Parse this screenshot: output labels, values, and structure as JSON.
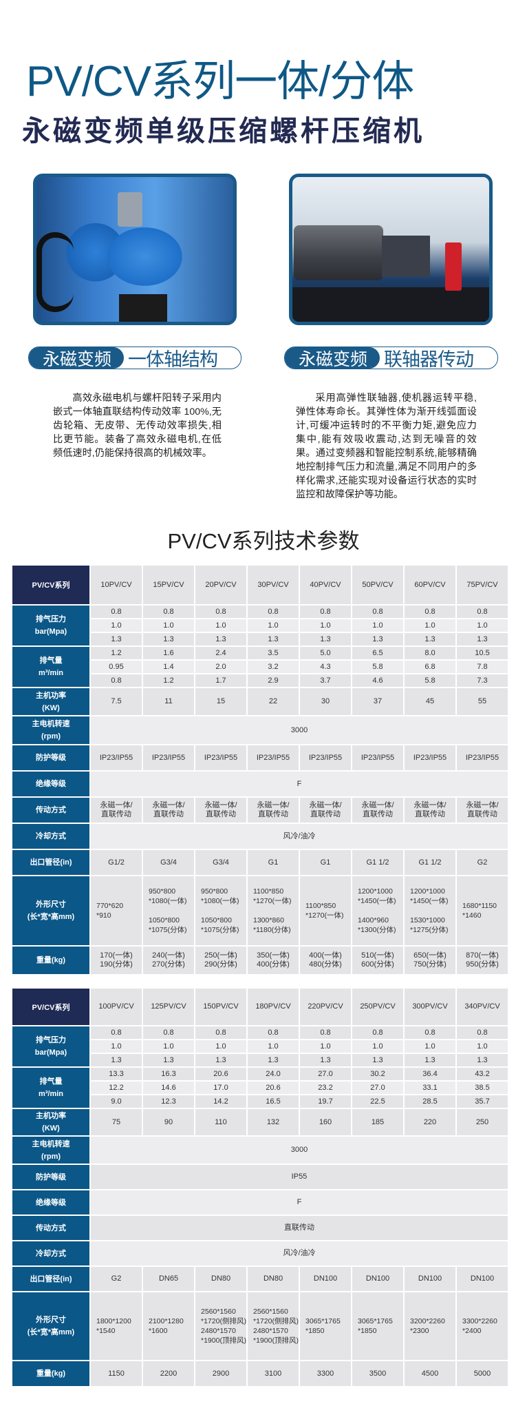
{
  "header": {
    "title_main": "PV/CV系列",
    "title_thin": "一体/分体",
    "subtitle": "永磁变频单级压缩螺杆压缩机"
  },
  "features": [
    {
      "image": "integrated-shaft-compressor-photo",
      "badge_left": "永磁变频",
      "badge_right": "一体轴结构",
      "description": "高效永磁电机与螺杆阳转子采用内嵌式一体轴直联结构传动效率 100%,无齿轮箱、无皮带、无传动效率损失,相比更节能。装备了高效永磁电机,在低频低速时,仍能保持很高的机械效率。"
    },
    {
      "image": "coupling-drive-compressor-photo",
      "badge_left": "永磁变频",
      "badge_right": "联轴器传动",
      "description": "采用高弹性联轴器,使机器运转平稳,弹性体寿命长。其弹性体为渐开线弧面设计,可缓冲运转时的不平衡力矩,避免应力集中,能有效吸收震动,达到无噪音的效果。通过变频器和智能控制系统,能够精确地控制排气压力和流量,满足不同用户的多样化需求,还能实现对设备运行状态的实时监控和故障保护等功能。"
    }
  ],
  "section_title": "PV/CV系列技术参数",
  "colors": {
    "title": "#0f5886",
    "row_header": "#0b5787",
    "corner": "#1f2a55",
    "cell": "#e4e4e7"
  },
  "tables": [
    {
      "corner": "PV/CV系列",
      "models": [
        "10PV/CV",
        "15PV/CV",
        "20PV/CV",
        "30PV/CV",
        "40PV/CV",
        "50PV/CV",
        "60PV/CV",
        "75PV/CV"
      ],
      "rows": [
        {
          "label": "排气压力\nbar(Mpa)",
          "subrows": [
            [
              "0.8",
              "0.8",
              "0.8",
              "0.8",
              "0.8",
              "0.8",
              "0.8",
              "0.8"
            ],
            [
              "1.0",
              "1.0",
              "1.0",
              "1.0",
              "1.0",
              "1.0",
              "1.0",
              "1.0"
            ],
            [
              "1.3",
              "1.3",
              "1.3",
              "1.3",
              "1.3",
              "1.3",
              "1.3",
              "1.3"
            ]
          ]
        },
        {
          "label": "排气量\nm³/min",
          "subrows": [
            [
              "1.2",
              "1.6",
              "2.4",
              "3.5",
              "5.0",
              "6.5",
              "8.0",
              "10.5"
            ],
            [
              "0.95",
              "1.4",
              "2.0",
              "3.2",
              "4.3",
              "5.8",
              "6.8",
              "7.8"
            ],
            [
              "0.8",
              "1.2",
              "1.7",
              "2.9",
              "3.7",
              "4.6",
              "5.8",
              "7.3"
            ]
          ]
        },
        {
          "label": "主机功率\n(KW)",
          "values": [
            "7.5",
            "11",
            "15",
            "22",
            "30",
            "37",
            "45",
            "55"
          ]
        },
        {
          "label": "主电机转速\n(rpm)",
          "merged": "3000"
        },
        {
          "label": "防护等级",
          "values": [
            "IP23/IP55",
            "IP23/IP55",
            "IP23/IP55",
            "IP23/IP55",
            "IP23/IP55",
            "IP23/IP55",
            "IP23/IP55",
            "IP23/IP55"
          ]
        },
        {
          "label": "绝缘等级",
          "merged": "F"
        },
        {
          "label": "传动方式",
          "values": [
            "永磁一体/\n直联传动",
            "永磁一体/\n直联传动",
            "永磁一体/\n直联传动",
            "永磁一体/\n直联传动",
            "永磁一体/\n直联传动",
            "永磁一体/\n直联传动",
            "永磁一体/\n直联传动",
            "永磁一体/\n直联传动"
          ]
        },
        {
          "label": "冷却方式",
          "merged": "风冷/油冷"
        },
        {
          "label": "出口管径(in)",
          "values": [
            "G1/2",
            "G3/4",
            "G3/4",
            "G1",
            "G1",
            "G1  1/2",
            "G1  1/2",
            "G2"
          ]
        },
        {
          "label": "外形尺寸\n(长*宽*高mm)",
          "dims": true,
          "values": [
            "770*620\n*910",
            "950*800\n*1080(一体)\n\n1050*800\n*1075(分体)",
            "950*800\n*1080(一体)\n\n1050*800\n*1075(分体)",
            "1100*850\n*1270(一体)\n\n1300*860\n*1180(分体)",
            "1100*850\n*1270(一体)",
            "1200*1000\n*1450(一体)\n\n1400*960\n*1300(分体)",
            "1200*1000\n*1450(一体)\n\n1530*1000\n*1275(分体)",
            "1680*1150\n*1460"
          ]
        },
        {
          "label": "重量(kg)",
          "values": [
            "170(一体)\n190(分体)",
            "240(一体)\n270(分体)",
            "250(一体)\n290(分体)",
            "350(一体)\n400(分体)",
            "400(一体)\n480(分体)",
            "510(一体)\n600(分体)",
            "650(一体)\n750(分体)",
            "870(一体)\n950(分体)"
          ]
        }
      ]
    },
    {
      "corner": "PV/CV系列",
      "models": [
        "100PV/CV",
        "125PV/CV",
        "150PV/CV",
        "180PV/CV",
        "220PV/CV",
        "250PV/CV",
        "300PV/CV",
        "340PV/CV"
      ],
      "rows": [
        {
          "label": "排气压力\nbar(Mpa)",
          "subrows": [
            [
              "0.8",
              "0.8",
              "0.8",
              "0.8",
              "0.8",
              "0.8",
              "0.8",
              "0.8"
            ],
            [
              "1.0",
              "1.0",
              "1.0",
              "1.0",
              "1.0",
              "1.0",
              "1.0",
              "1.0"
            ],
            [
              "1.3",
              "1.3",
              "1.3",
              "1.3",
              "1.3",
              "1.3",
              "1.3",
              "1.3"
            ]
          ]
        },
        {
          "label": "排气量\nm³/min",
          "subrows": [
            [
              "13.3",
              "16.3",
              "20.6",
              "24.0",
              "27.0",
              "30.2",
              "36.4",
              "43.2"
            ],
            [
              "12.2",
              "14.6",
              "17.0",
              "20.6",
              "23.2",
              "27.0",
              "33.1",
              "38.5"
            ],
            [
              "9.0",
              "12.3",
              "14.2",
              "16.5",
              "19.7",
              "22.5",
              "28.5",
              "35.7"
            ]
          ]
        },
        {
          "label": "主机功率\n(KW)",
          "values": [
            "75",
            "90",
            "110",
            "132",
            "160",
            "185",
            "220",
            "250"
          ]
        },
        {
          "label": "主电机转速\n(rpm)",
          "merged": "3000"
        },
        {
          "label": "防护等级",
          "merged": "IP55"
        },
        {
          "label": "绝缘等级",
          "merged": "F"
        },
        {
          "label": "传动方式",
          "merged": "直联传动"
        },
        {
          "label": "冷却方式",
          "merged": "风冷/油冷"
        },
        {
          "label": "出口管径(in)",
          "values": [
            "G2",
            "DN65",
            "DN80",
            "DN80",
            "DN100",
            "DN100",
            "DN100",
            "DN100"
          ]
        },
        {
          "label": "外形尺寸\n(长*宽*高mm)",
          "dims": true,
          "values": [
            "1800*1200\n*1540",
            "2100*1280\n*1600",
            "2560*1560\n*1720(侧排风)\n2480*1570\n*1900(顶排风)",
            "2560*1560\n*1720(侧排风)\n2480*1570\n*1900(顶排风)",
            "3065*1765\n*1850",
            "3065*1765\n*1850",
            "3200*2260\n*2300",
            "3300*2260\n*2400"
          ]
        },
        {
          "label": "重量(kg)",
          "values": [
            "1150",
            "2200",
            "2900",
            "3100",
            "3300",
            "3500",
            "4500",
            "5000"
          ]
        }
      ]
    }
  ]
}
